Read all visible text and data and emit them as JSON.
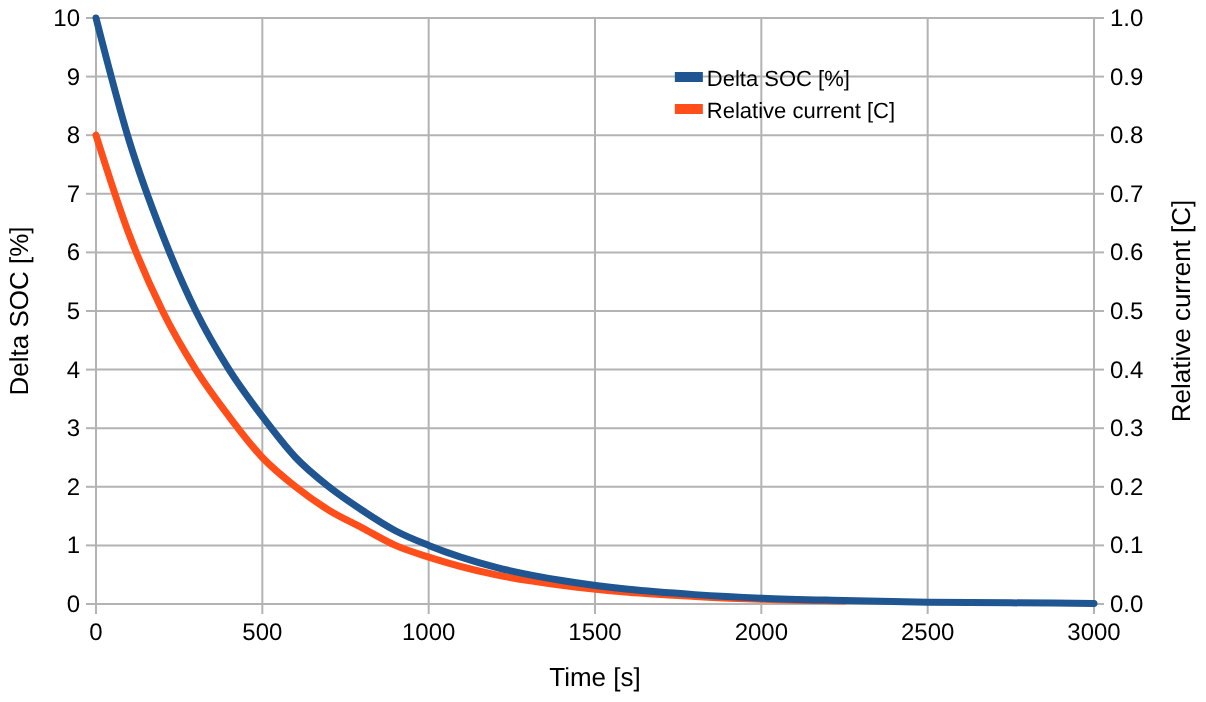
{
  "chart_data": {
    "type": "line",
    "xlabel": "Time [s]",
    "ylabel": "Delta SOC [%]",
    "y2label": "Relative current [C]",
    "x": [
      0,
      100,
      200,
      300,
      400,
      500,
      600,
      700,
      800,
      900,
      1000,
      1200,
      1400,
      1600,
      1800,
      2000,
      2250,
      2500,
      2750,
      3000
    ],
    "series": [
      {
        "name": "Delta SOC [%]",
        "color": "#1f5591",
        "values": [
          10,
          7.9,
          6.3,
          5.0,
          4.0,
          3.2,
          2.5,
          2.0,
          1.6,
          1.25,
          1.0,
          0.63,
          0.4,
          0.25,
          0.16,
          0.1,
          0.06,
          0.03,
          0.02,
          0.01
        ]
      },
      {
        "name": "Relative current [C]",
        "color": "#ff4e1a",
        "axis": "y2",
        "values": [
          0.8,
          0.63,
          0.5,
          0.4,
          0.32,
          0.25,
          0.2,
          0.16,
          0.13,
          0.1,
          0.08,
          0.05,
          0.032,
          0.02,
          0.013,
          0.008,
          0.005,
          null,
          null,
          null
        ]
      }
    ],
    "xlim": [
      0,
      3000
    ],
    "xticks": [
      0,
      500,
      1000,
      1500,
      2000,
      2500,
      3000
    ],
    "ylim": [
      0,
      10
    ],
    "yticks": [
      0,
      1,
      2,
      3,
      4,
      5,
      6,
      7,
      8,
      9,
      10
    ],
    "y2lim": [
      0,
      1
    ],
    "y2ticks": [
      {
        "value": 0,
        "label": "0.0"
      },
      {
        "value": 0.1,
        "label": "0.1"
      },
      {
        "value": 0.2,
        "label": "0.2"
      },
      {
        "value": 0.3,
        "label": "0.3"
      },
      {
        "value": 0.4,
        "label": "0.4"
      },
      {
        "value": 0.5,
        "label": "0.5"
      },
      {
        "value": 0.6,
        "label": "0.6"
      },
      {
        "value": 0.7,
        "label": "0.7"
      },
      {
        "value": 0.8,
        "label": "0.8"
      },
      {
        "value": 0.9,
        "label": "0.9"
      },
      {
        "value": 1,
        "label": "1.0"
      }
    ],
    "grid": true,
    "legend": "top right",
    "marker": "none",
    "line_style": "solid"
  }
}
